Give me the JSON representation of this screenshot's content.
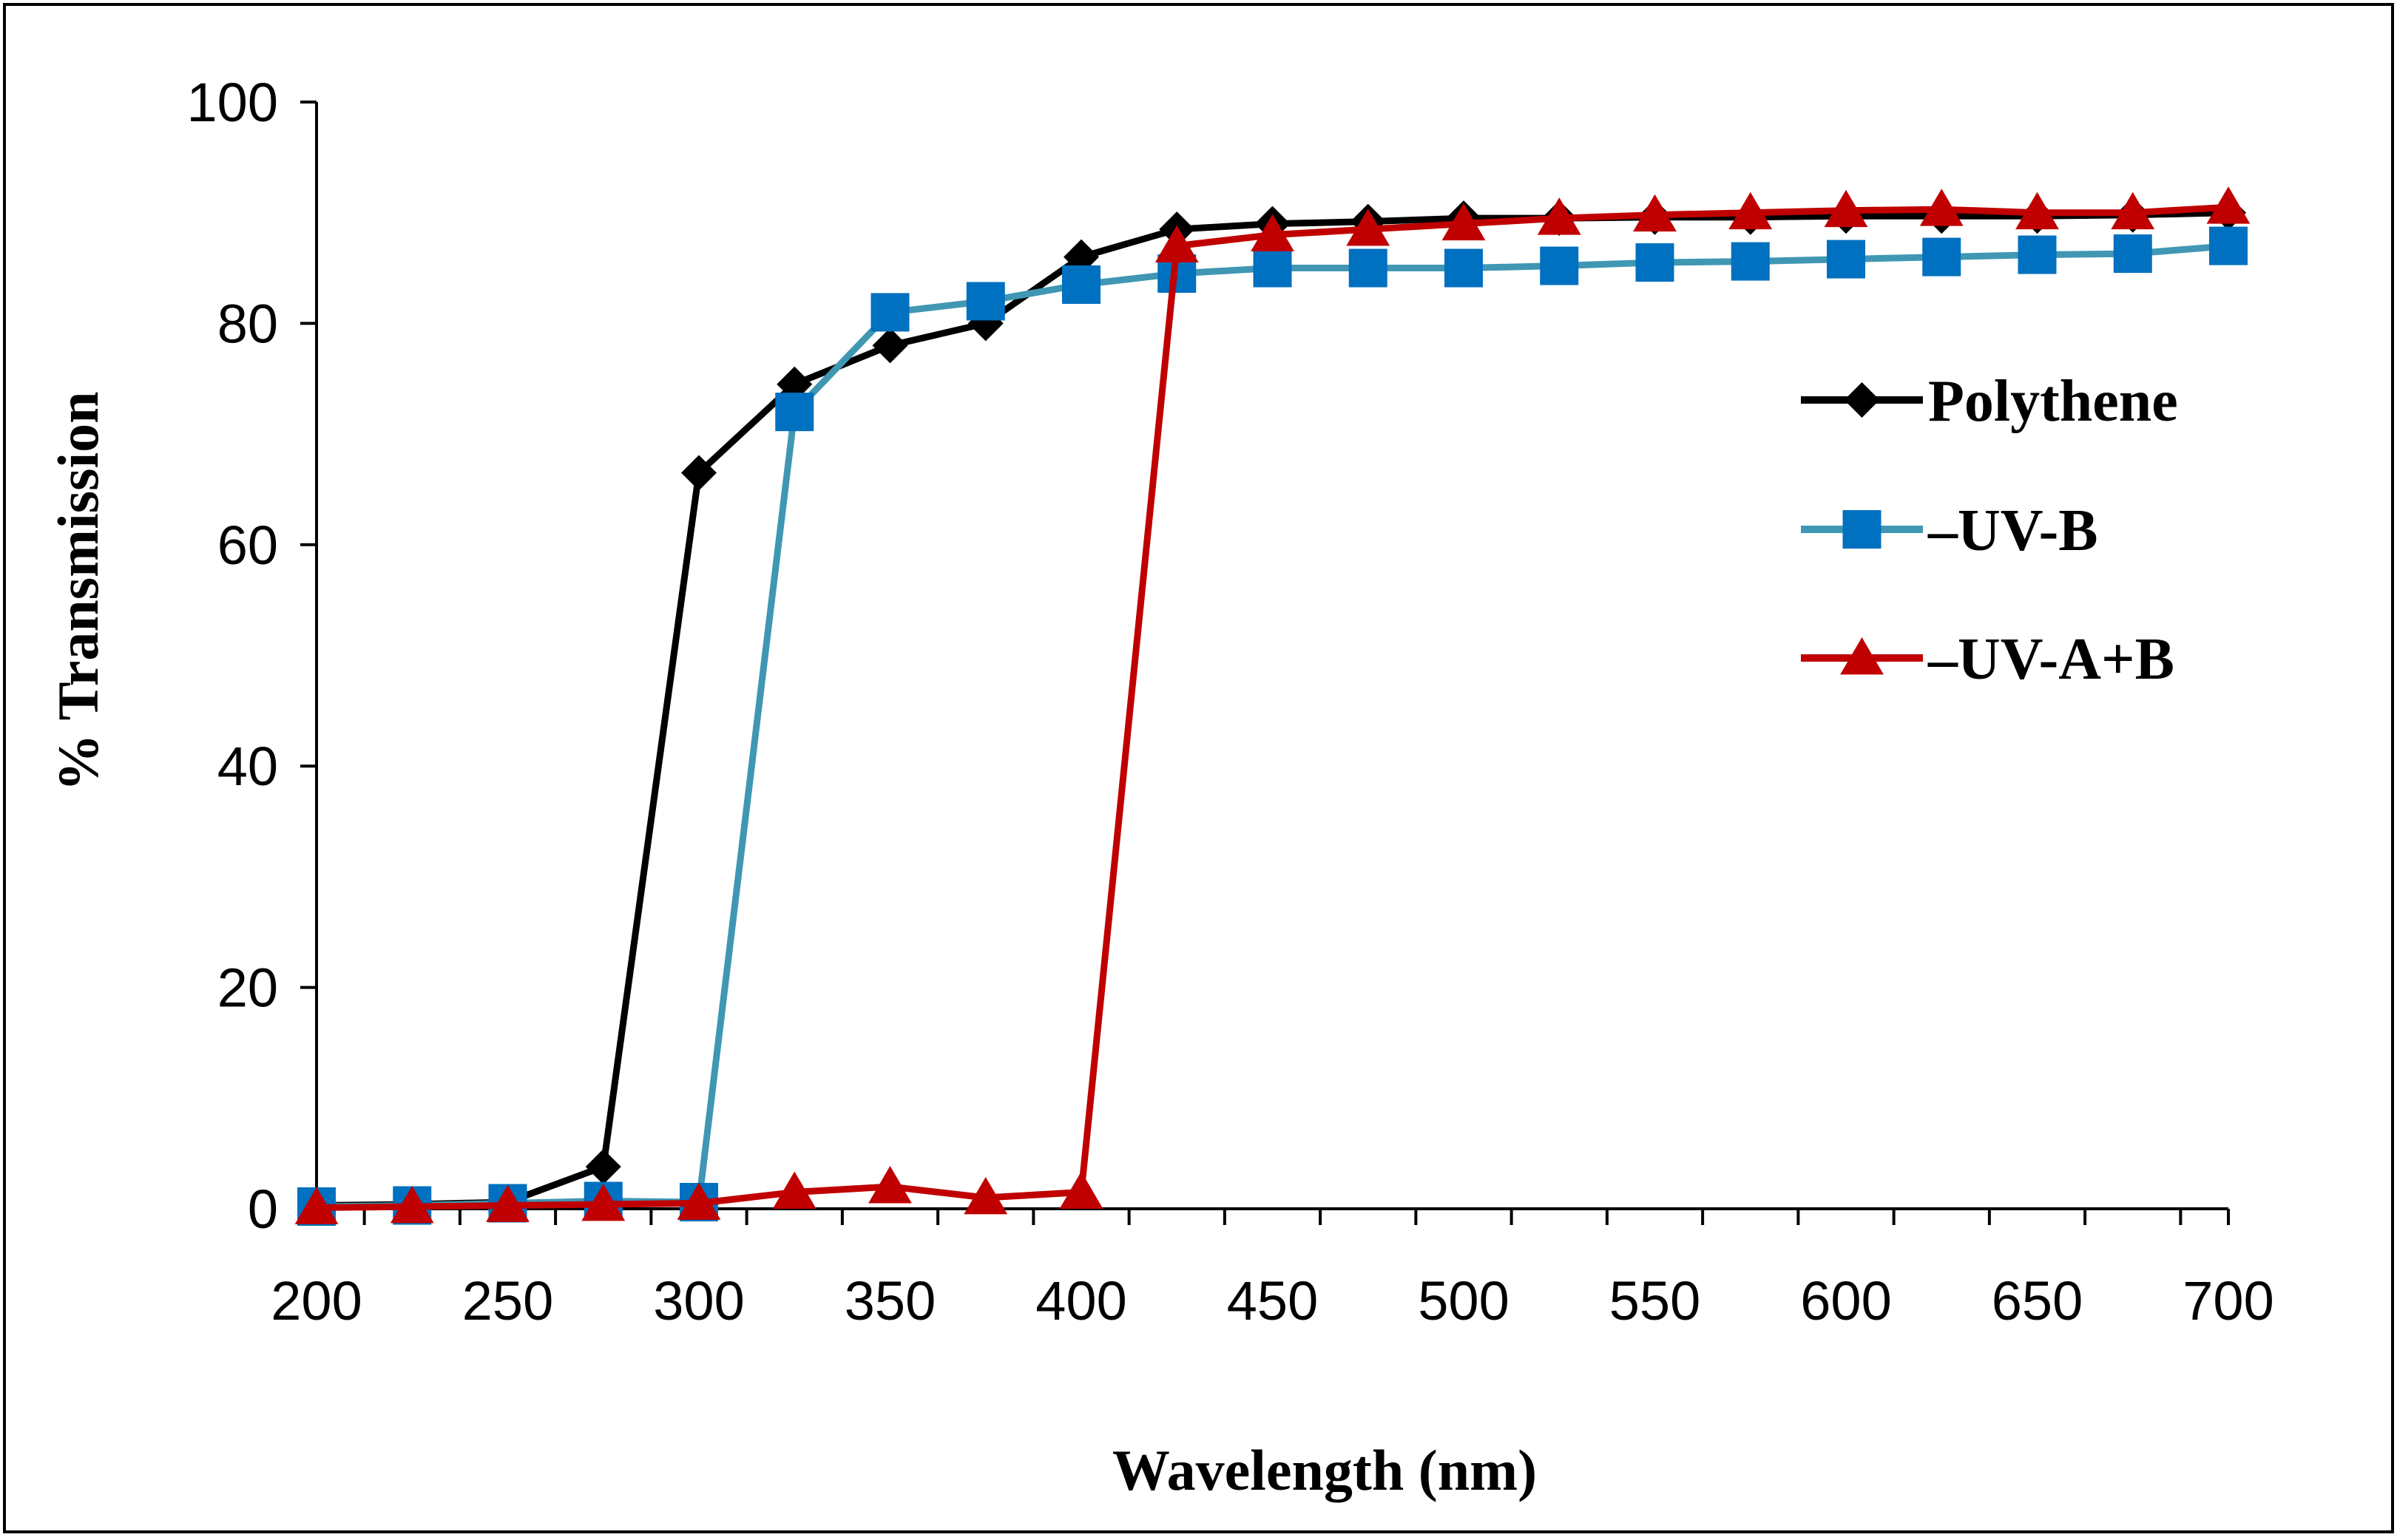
{
  "chart_data": {
    "type": "line",
    "title": "",
    "xlabel": "Wavelength (nm)",
    "ylabel": "% Transmission",
    "xlim": [
      200,
      700
    ],
    "ylim": [
      0,
      100
    ],
    "x_ticks": [
      200,
      250,
      300,
      350,
      400,
      450,
      500,
      550,
      600,
      650,
      700
    ],
    "y_ticks": [
      0,
      20,
      40,
      60,
      80,
      100
    ],
    "grid": false,
    "legend_position": "right",
    "x": [
      200,
      225,
      250,
      275,
      300,
      325,
      350,
      375,
      400,
      425,
      450,
      475,
      500,
      525,
      550,
      575,
      600,
      625,
      650,
      675,
      700
    ],
    "series": [
      {
        "name": "Polythene",
        "color": "#000000",
        "marker": "diamond",
        "values": [
          0.3,
          0.4,
          0.6,
          3.8,
          66.5,
          74.5,
          78.0,
          80.0,
          86.0,
          88.5,
          89.0,
          89.2,
          89.5,
          89.5,
          89.6,
          89.6,
          89.7,
          89.7,
          89.7,
          89.8,
          90.0
        ]
      },
      {
        "name": "–UV-B",
        "color": "#0070c0",
        "line_color": "#3f97b3",
        "marker": "square",
        "values": [
          0.2,
          0.3,
          0.5,
          0.7,
          0.6,
          72.0,
          81.0,
          82.0,
          83.5,
          84.5,
          85.0,
          85.0,
          85.0,
          85.2,
          85.5,
          85.6,
          85.8,
          86.0,
          86.2,
          86.3,
          87.0
        ]
      },
      {
        "name": "–UV-A+B",
        "color": "#c00000",
        "marker": "triangle",
        "values": [
          0.1,
          0.2,
          0.3,
          0.4,
          0.5,
          1.5,
          2.0,
          1.0,
          1.5,
          87.0,
          88.0,
          88.5,
          89.0,
          89.5,
          89.8,
          90.0,
          90.2,
          90.3,
          90.0,
          90.0,
          90.5
        ]
      }
    ]
  }
}
